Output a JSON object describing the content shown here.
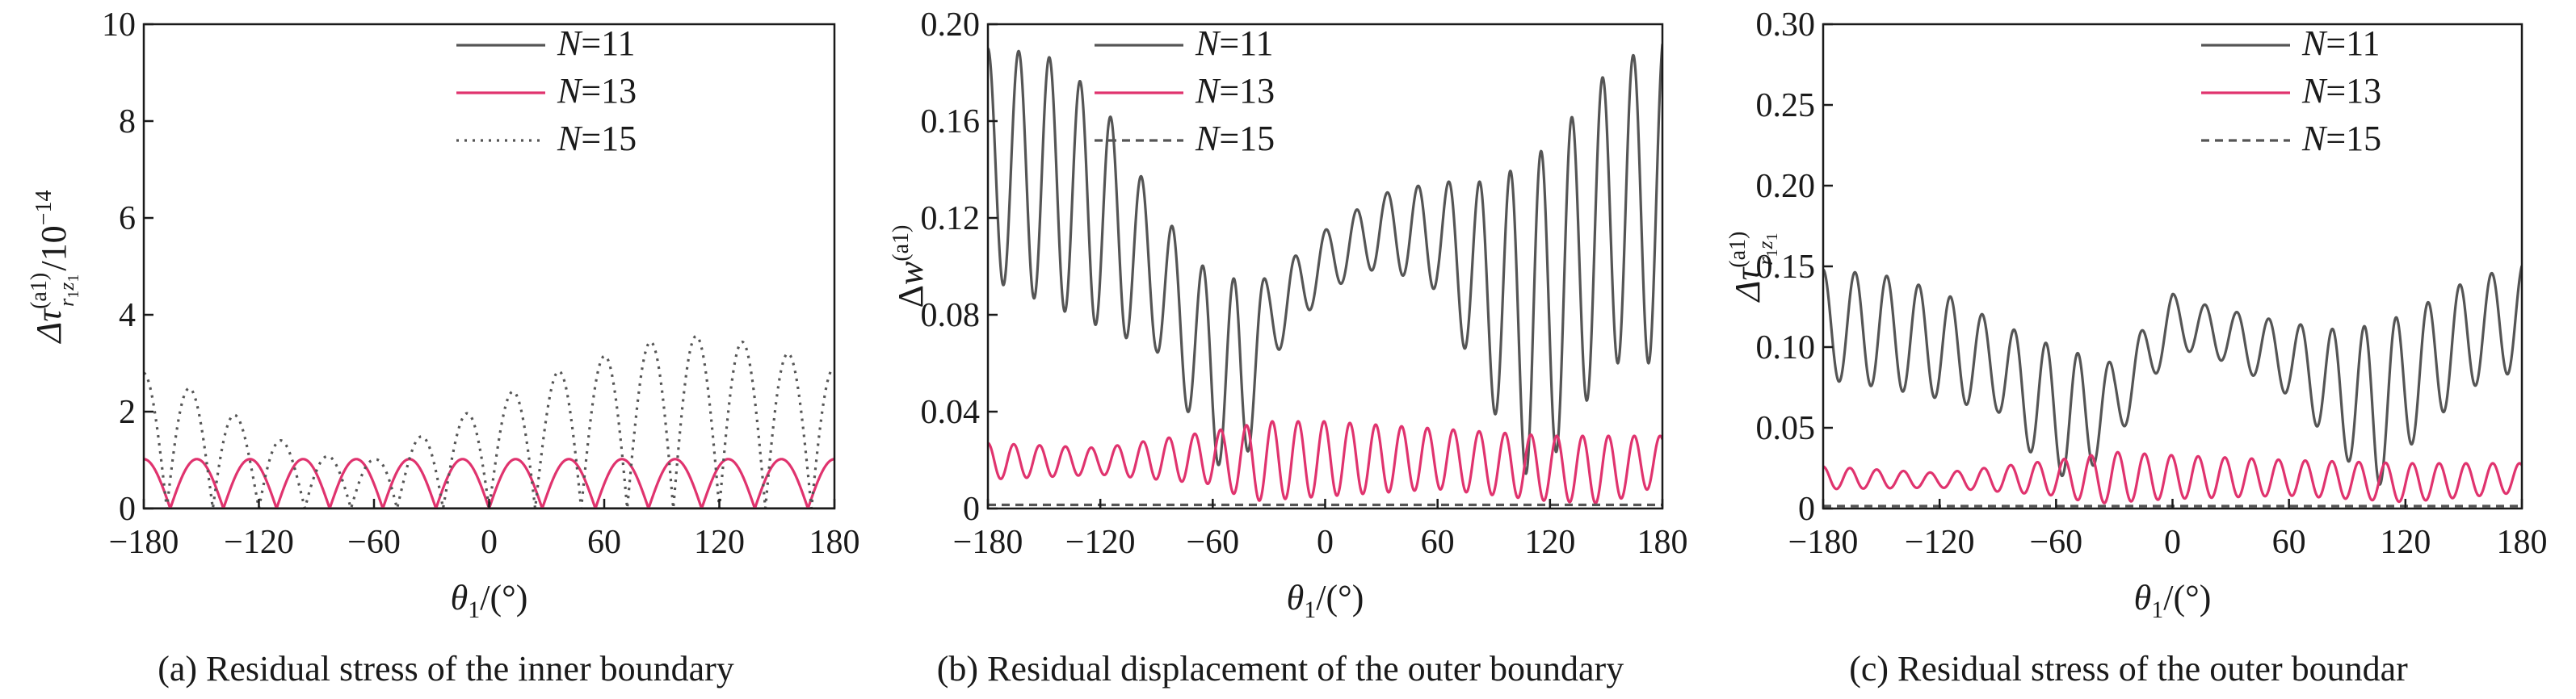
{
  "chart_data": [
    {
      "type": "line",
      "panel": "a",
      "caption": "(a) Residual stress of the inner boundary",
      "xlabel": {
        "var": "θ",
        "sub": "1",
        "unit": "/(°)"
      },
      "ylabel": {
        "prefix": "Δτ",
        "sup": "(a1)",
        "sub": "r",
        "sub2": "1",
        "sub3": "z",
        "sub4": "1",
        "tail": "/10",
        "exp": "−14"
      },
      "xlim": [
        -180,
        180
      ],
      "ylim": [
        0,
        10
      ],
      "xticks": [
        -180,
        -120,
        -60,
        0,
        60,
        120,
        180
      ],
      "yticks": [
        0,
        2,
        4,
        6,
        8,
        10
      ],
      "ytick_labels": [
        "0",
        "2",
        "4",
        "6",
        "8",
        "10"
      ],
      "legend_position": "top-right",
      "series": [
        {
          "name": "N=11",
          "color": "#555555",
          "style": "solid",
          "model": {
            "kind": "zero"
          }
        },
        {
          "name": "N=13",
          "color": "#e0336e",
          "style": "solid",
          "model": {
            "kind": "absWave",
            "amp": 1.02,
            "period": 27.7,
            "phase": 0,
            "offset": 0
          }
        },
        {
          "name": "N=15",
          "color": "#555555",
          "style": "dotted",
          "model": {
            "kind": "absWaveEnv",
            "period": 24,
            "envelope": [
              [
                -180,
                2.8
              ],
              [
                -150,
                2.4
              ],
              [
                -120,
                1.6
              ],
              [
                -90,
                1.1
              ],
              [
                -60,
                1.0
              ],
              [
                -30,
                1.6
              ],
              [
                0,
                2.2
              ],
              [
                40,
                2.9
              ],
              [
                80,
                3.4
              ],
              [
                100,
                3.6
              ],
              [
                140,
                3.4
              ],
              [
                180,
                2.9
              ]
            ]
          }
        }
      ]
    },
    {
      "type": "line",
      "panel": "b",
      "caption": "(b) Residual displacement of the outer boundary",
      "xlabel": {
        "var": "θ",
        "sub": "1",
        "unit": "/(°)"
      },
      "ylabel": {
        "prefix": "Δ",
        "var": "w",
        "sup": "(a1)"
      },
      "xlim": [
        -180,
        180
      ],
      "ylim": [
        0,
        0.2
      ],
      "xticks": [
        -180,
        -120,
        -60,
        0,
        60,
        120,
        180
      ],
      "yticks": [
        0,
        0.04,
        0.08,
        0.12,
        0.16,
        0.2
      ],
      "ytick_labels": [
        "0",
        "0.04",
        "0.08",
        "0.12",
        "0.16",
        "0.20"
      ],
      "legend_position": "top-right",
      "series": [
        {
          "name": "N=11",
          "color": "#555555",
          "style": "solid",
          "model": {
            "kind": "envWave",
            "period": 16.4,
            "upper": [
              [
                -180,
                0.19
              ],
              [
                -150,
                0.188
              ],
              [
                -120,
                0.17
              ],
              [
                -90,
                0.125
              ],
              [
                -60,
                0.095
              ],
              [
                -30,
                0.095
              ],
              [
                0,
                0.115
              ],
              [
                30,
                0.13
              ],
              [
                60,
                0.135
              ],
              [
                90,
                0.135
              ],
              [
                120,
                0.15
              ],
              [
                150,
                0.18
              ],
              [
                180,
                0.195
              ]
            ],
            "lower": [
              [
                -180,
                0.095
              ],
              [
                -150,
                0.085
              ],
              [
                -120,
                0.075
              ],
              [
                -90,
                0.065
              ],
              [
                -60,
                0.02
              ],
              [
                -45,
                0.01
              ],
              [
                -30,
                0.06
              ],
              [
                0,
                0.09
              ],
              [
                30,
                0.1
              ],
              [
                60,
                0.09
              ],
              [
                90,
                0.04
              ],
              [
                110,
                0.01
              ],
              [
                130,
                0.03
              ],
              [
                150,
                0.06
              ],
              [
                180,
                0.06
              ]
            ]
          }
        },
        {
          "name": "N=13",
          "color": "#e0336e",
          "style": "solid",
          "model": {
            "kind": "envWave",
            "period": 13.8,
            "upper": [
              [
                -180,
                0.027
              ],
              [
                -120,
                0.025
              ],
              [
                -60,
                0.032
              ],
              [
                -30,
                0.036
              ],
              [
                0,
                0.036
              ],
              [
                60,
                0.033
              ],
              [
                120,
                0.03
              ],
              [
                180,
                0.03
              ]
            ],
            "lower": [
              [
                -180,
                0.012
              ],
              [
                -120,
                0.014
              ],
              [
                -60,
                0.01
              ],
              [
                -40,
                0.003
              ],
              [
                0,
                0.005
              ],
              [
                60,
                0.008
              ],
              [
                120,
                0.003
              ],
              [
                150,
                0.002
              ],
              [
                180,
                0.01
              ]
            ]
          }
        },
        {
          "name": "N=15",
          "color": "#555555",
          "style": "dashed",
          "model": {
            "kind": "const",
            "value": 0.0015
          }
        }
      ]
    },
    {
      "type": "line",
      "panel": "c",
      "caption": "(c) Residual stress of the outer boundar",
      "xlabel": {
        "var": "θ",
        "sub": "1",
        "unit": "/(°)"
      },
      "ylabel": {
        "prefix": "Δτ",
        "sup": "(a1)",
        "sub": "r",
        "sub2": "1",
        "sub3": "z",
        "sub4": "1"
      },
      "xlim": [
        -180,
        180
      ],
      "ylim": [
        0,
        0.3
      ],
      "xticks": [
        -180,
        -120,
        -60,
        0,
        60,
        120,
        180
      ],
      "yticks": [
        0,
        0.05,
        0.1,
        0.15,
        0.2,
        0.25,
        0.3
      ],
      "ytick_labels": [
        "0",
        "0.05",
        "0.10",
        "0.15",
        "0.20",
        "0.25",
        "0.30"
      ],
      "legend_position": "top-right",
      "series": [
        {
          "name": "N=11",
          "color": "#555555",
          "style": "solid",
          "model": {
            "kind": "envWave",
            "period": 16.4,
            "upper": [
              [
                -180,
                0.148
              ],
              [
                -150,
                0.145
              ],
              [
                -120,
                0.135
              ],
              [
                -90,
                0.115
              ],
              [
                -60,
                0.1
              ],
              [
                -30,
                0.09
              ],
              [
                0,
                0.133
              ],
              [
                20,
                0.125
              ],
              [
                40,
                0.12
              ],
              [
                60,
                0.115
              ],
              [
                90,
                0.11
              ],
              [
                120,
                0.12
              ],
              [
                150,
                0.14
              ],
              [
                180,
                0.152
              ]
            ],
            "lower": [
              [
                -180,
                0.08
              ],
              [
                -150,
                0.075
              ],
              [
                -120,
                0.068
              ],
              [
                -90,
                0.06
              ],
              [
                -70,
                0.03
              ],
              [
                -50,
                0.015
              ],
              [
                -30,
                0.04
              ],
              [
                0,
                0.1
              ],
              [
                30,
                0.09
              ],
              [
                60,
                0.07
              ],
              [
                90,
                0.03
              ],
              [
                105,
                0.012
              ],
              [
                130,
                0.05
              ],
              [
                160,
                0.08
              ],
              [
                180,
                0.085
              ]
            ]
          }
        },
        {
          "name": "N=13",
          "color": "#e0336e",
          "style": "solid",
          "model": {
            "kind": "envWave",
            "period": 13.8,
            "upper": [
              [
                -180,
                0.026
              ],
              [
                -120,
                0.022
              ],
              [
                -60,
                0.03
              ],
              [
                -30,
                0.035
              ],
              [
                0,
                0.033
              ],
              [
                60,
                0.03
              ],
              [
                120,
                0.028
              ],
              [
                180,
                0.028
              ]
            ],
            "lower": [
              [
                -180,
                0.012
              ],
              [
                -120,
                0.013
              ],
              [
                -60,
                0.008
              ],
              [
                -40,
                0.003
              ],
              [
                0,
                0.006
              ],
              [
                60,
                0.008
              ],
              [
                120,
                0.004
              ],
              [
                180,
                0.01
              ]
            ]
          }
        },
        {
          "name": "N=15",
          "color": "#555555",
          "style": "dashed",
          "model": {
            "kind": "const",
            "value": 0.0015
          }
        }
      ]
    }
  ]
}
